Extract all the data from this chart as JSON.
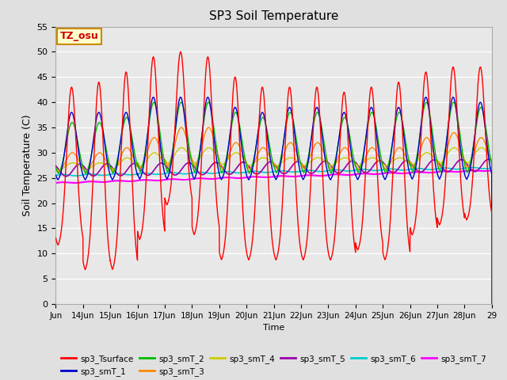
{
  "title": "SP3 Soil Temperature",
  "xlabel": "Time",
  "ylabel": "Soil Temperature (C)",
  "ylim": [
    0,
    55
  ],
  "yticks": [
    0,
    5,
    10,
    15,
    20,
    25,
    30,
    35,
    40,
    45,
    50,
    55
  ],
  "plot_bg_color": "#e8e8e8",
  "fig_bg_color": "#e0e0e0",
  "annotation_text": "TZ_osu",
  "annotation_bg": "#ffffcc",
  "annotation_border": "#cc8800",
  "series_colors": {
    "sp3_Tsurface": "#ff0000",
    "sp3_smT_1": "#0000cc",
    "sp3_smT_2": "#00bb00",
    "sp3_smT_3": "#ff8800",
    "sp3_smT_4": "#cccc00",
    "sp3_smT_5": "#9900aa",
    "sp3_smT_6": "#00cccc",
    "sp3_smT_7": "#ff00ff"
  },
  "x_tick_labels": [
    "Jun",
    "14Jun",
    "15Jun",
    "16Jun",
    "17Jun",
    "18Jun",
    "19Jun",
    "20Jun",
    "21Jun",
    "22Jun",
    "23Jun",
    "24Jun",
    "25Jun",
    "26Jun",
    "27Jun",
    "28Jun",
    "29"
  ],
  "legend_entries": [
    "sp3_Tsurface",
    "sp3_smT_1",
    "sp3_smT_2",
    "sp3_smT_3",
    "sp3_smT_4",
    "sp3_smT_5",
    "sp3_smT_6",
    "sp3_smT_7"
  ]
}
